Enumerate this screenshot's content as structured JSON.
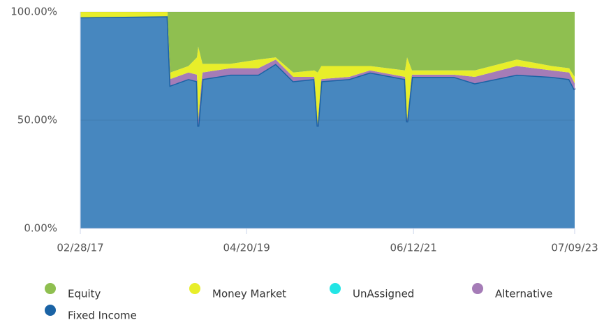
{
  "chart_data": {
    "type": "stacked_area",
    "x": [
      "02/28/17",
      "04/14/18",
      "04/27/18",
      "07/21/18",
      "08/30/18",
      "09/05/18",
      "09/25/18",
      "02/03/19",
      "06/14/19",
      "09/04/19",
      "11/25/19",
      "03/03/20",
      "03/19/20",
      "04/05/20",
      "08/14/20",
      "11/20/20",
      "05/03/21",
      "05/13/21",
      "06/05/21",
      "12/19/21",
      "03/27/22",
      "10/10/22",
      "03/23/23",
      "06/13/23",
      "07/09/23"
    ],
    "series": [
      {
        "name": "Fixed Income",
        "color": "#4787bf",
        "line_color": "#1a63a5",
        "values": [
          97.5,
          98,
          66,
          69,
          68,
          47,
          69,
          71,
          71,
          76,
          68,
          69,
          47,
          68,
          69,
          72,
          69,
          49,
          70,
          70,
          67,
          71,
          70,
          69,
          64
        ]
      },
      {
        "name": "Alternative",
        "color": "#a57cb7",
        "values": [
          0,
          0,
          3,
          3,
          3,
          3,
          3,
          3,
          3,
          2,
          2,
          1,
          1,
          1,
          1,
          1,
          1,
          1,
          1,
          1,
          3,
          4,
          3,
          3,
          3
        ]
      },
      {
        "name": "UnAssigned",
        "color": "#22e5e5",
        "values": [
          0,
          0,
          0,
          0,
          0,
          0,
          0,
          0,
          0,
          0,
          0,
          0,
          0,
          0,
          0,
          0,
          0,
          0,
          0,
          0,
          0,
          0,
          0,
          0,
          0
        ]
      },
      {
        "name": "Money Market",
        "color": "#e8ee2a",
        "values": [
          2.5,
          2,
          3,
          3,
          8,
          34,
          4,
          2,
          4,
          1,
          2,
          3,
          24,
          6,
          5,
          2,
          3,
          29,
          2,
          2,
          3,
          3,
          2,
          2,
          3
        ]
      },
      {
        "name": "Equity",
        "color": "#8fbf50",
        "values": [
          0,
          0,
          28,
          25,
          21,
          16,
          24,
          24,
          22,
          21,
          28,
          27,
          28,
          25,
          25,
          25,
          27,
          21,
          27,
          27,
          27,
          22,
          25,
          26,
          30
        ]
      }
    ],
    "legend_order": [
      4,
      3,
      2,
      1,
      0
    ],
    "ylim": [
      0,
      100
    ],
    "yticks": [
      {
        "value": 0,
        "label": "0.00%"
      },
      {
        "value": 50,
        "label": "50.00%"
      },
      {
        "value": 100,
        "label": "100.00%"
      }
    ],
    "xlim": [
      "02/28/17",
      "07/09/23"
    ],
    "xticks": [
      "02/28/17",
      "04/20/19",
      "06/12/21",
      "07/09/23"
    ],
    "grid": true
  }
}
